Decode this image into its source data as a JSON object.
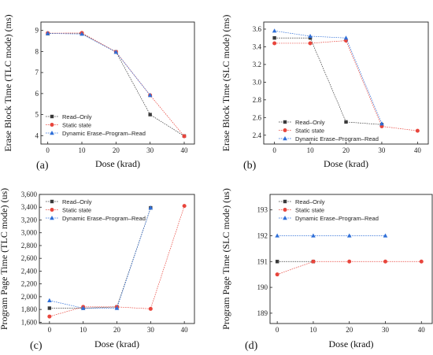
{
  "series_names": [
    "Read–Only",
    "Static state",
    "Dynamic Erase–Program–Read"
  ],
  "colors": {
    "read_only": "#3a3a3a",
    "static_state": "#e8453c",
    "dynamic": "#2f6fd8"
  },
  "marker_shapes": [
    "square",
    "circle",
    "triangle"
  ],
  "chart_data": [
    {
      "type": "line",
      "panel_label": "(a)",
      "xlabel": "Dose (krad)",
      "ylabel": "Erase Block Time (TLC mode) (ms)",
      "xlim": [
        -2,
        43
      ],
      "ylim": [
        3.6,
        9.4
      ],
      "xticks": [
        0,
        10,
        20,
        30,
        40
      ],
      "yticks": [
        4,
        5,
        6,
        7,
        8,
        9
      ],
      "ytick_labels": [
        "4",
        "5",
        "6",
        "7",
        "8",
        "9"
      ],
      "legend_position": "bottom-left",
      "series": [
        {
          "name": "Read–Only",
          "x": [
            0,
            10,
            20,
            30,
            40
          ],
          "values": [
            8.85,
            8.85,
            7.98,
            5.0,
            3.98
          ]
        },
        {
          "name": "Static state",
          "x": [
            0,
            10,
            20,
            30,
            40
          ],
          "values": [
            8.87,
            8.88,
            7.98,
            5.92,
            3.97
          ]
        },
        {
          "name": "Dynamic Erase–Program–Read",
          "x": [
            0,
            10,
            20,
            30
          ],
          "values": [
            8.86,
            8.83,
            7.97,
            5.92
          ]
        }
      ]
    },
    {
      "type": "line",
      "panel_label": "(b)",
      "xlabel": "Dose (krad)",
      "ylabel": "Erase Block Time (SLC mode) (ms)",
      "xlim": [
        -3,
        43
      ],
      "ylim": [
        2.3,
        3.68
      ],
      "xticks": [
        0,
        10,
        20,
        30,
        40
      ],
      "yticks": [
        2.4,
        2.6,
        2.8,
        3.0,
        3.2,
        3.4,
        3.6
      ],
      "ytick_labels": [
        "2.4",
        "2.6",
        "2.8",
        "3.0",
        "3.2",
        "3.4",
        "3.6"
      ],
      "legend_position": "bottom-left",
      "series": [
        {
          "name": "Read–Only",
          "x": [
            0,
            10,
            20,
            30
          ],
          "values": [
            3.5,
            3.5,
            2.55,
            2.52
          ]
        },
        {
          "name": "Static state",
          "x": [
            0,
            10,
            20,
            30,
            40
          ],
          "values": [
            3.44,
            3.44,
            3.47,
            2.5,
            2.45
          ]
        },
        {
          "name": "Dynamic Erase–Program–Read",
          "x": [
            0,
            10,
            20,
            30
          ],
          "values": [
            3.58,
            3.52,
            3.5,
            2.53
          ]
        }
      ]
    },
    {
      "type": "line",
      "panel_label": "(c)",
      "xlabel": "Dose (krad)",
      "ylabel": "Program  Page Time (TLC mode) (us)",
      "xlim": [
        -3,
        43
      ],
      "ylim": [
        1580,
        3600
      ],
      "xticks": [
        0,
        10,
        20,
        30,
        40
      ],
      "yticks": [
        1600,
        1800,
        2000,
        2200,
        2400,
        2600,
        2800,
        3000,
        3200,
        3400,
        3600
      ],
      "ytick_labels": [
        "1,600",
        "1,800",
        "2,000",
        "2,200",
        "2,400",
        "2,600",
        "2,800",
        "3,000",
        "3,200",
        "3,400",
        "3,600"
      ],
      "legend_position": "top-left",
      "series": [
        {
          "name": "Read–Only",
          "x": [
            0,
            10,
            20,
            30
          ],
          "values": [
            1820,
            1820,
            1840,
            3390
          ]
        },
        {
          "name": "Static state",
          "x": [
            0,
            10,
            20,
            30,
            40
          ],
          "values": [
            1690,
            1840,
            1840,
            1810,
            3420
          ]
        },
        {
          "name": "Dynamic Erase–Program–Read",
          "x": [
            0,
            10,
            20,
            30
          ],
          "values": [
            1940,
            1820,
            1820,
            3390
          ]
        }
      ]
    },
    {
      "type": "line",
      "panel_label": "(d)",
      "xlabel": "Dose (krad)",
      "ylabel": "Program  Page Time (SLC mode) (us)",
      "xlim": [
        -2,
        43
      ],
      "ylim": [
        188.6,
        193.6
      ],
      "xticks": [
        0,
        10,
        20,
        30,
        40
      ],
      "yticks": [
        189,
        190,
        191,
        192,
        193
      ],
      "ytick_labels": [
        "189",
        "190",
        "191",
        "192",
        "193"
      ],
      "legend_position": "top-center",
      "series": [
        {
          "name": "Read–Only",
          "x": [
            0,
            10
          ],
          "values": [
            191,
            191
          ]
        },
        {
          "name": "Static state",
          "x": [
            0,
            10,
            20,
            30,
            40
          ],
          "values": [
            190.5,
            191,
            191,
            191,
            191
          ]
        },
        {
          "name": "Dynamic Erase–Program–Read",
          "x": [
            0,
            10,
            20,
            30
          ],
          "values": [
            192,
            192,
            192,
            192
          ]
        }
      ]
    }
  ]
}
